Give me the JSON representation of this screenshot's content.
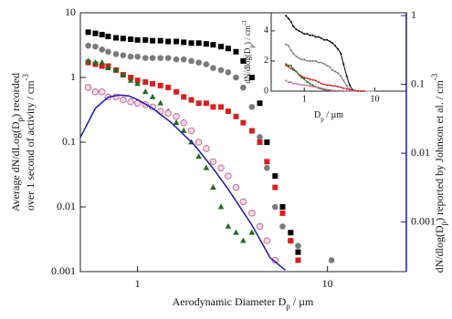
{
  "chart_data": {
    "type": "scatter",
    "x_label": [
      "Aerodynamic Diameter D",
      "p",
      " / µm"
    ],
    "y_label": {
      "line1": [
        "Average dN/dLog(D",
        "p",
        ") recorded"
      ],
      "line2": [
        "over 1 second of activity / cm",
        "-3"
      ]
    },
    "y2_label": [
      "dN/dlog(D",
      "p",
      ") reported by Johnson et al. / cm",
      "-3"
    ],
    "log_x": true,
    "log_y": true,
    "xlim": [
      0.5,
      26
    ],
    "xticks": [
      1,
      10
    ],
    "ylim": [
      0.001,
      10
    ],
    "yticks": [
      0.001,
      0.01,
      0.1,
      1,
      10
    ],
    "y2lim": [
      0.00019,
      1.1
    ],
    "y2ticks": [
      0.001,
      0.01,
      0.1,
      1
    ],
    "y2_color": "#1a1aa0",
    "x": [
      0.55,
      0.6,
      0.65,
      0.7,
      0.77,
      0.84,
      0.92,
      1.0,
      1.1,
      1.2,
      1.32,
      1.45,
      1.6,
      1.75,
      1.92,
      2.1,
      2.3,
      2.5,
      2.75,
      3.0,
      3.3,
      3.6,
      4.0,
      4.4,
      4.8,
      5.3,
      5.8,
      6.4,
      7.0,
      10.5
    ],
    "series": [
      {
        "color": "#000000",
        "marker": "square",
        "values": [
          5,
          4.8,
          4.6,
          4.3,
          4.1,
          4.0,
          3.9,
          3.8,
          3.8,
          3.7,
          3.7,
          3.6,
          3.6,
          3.5,
          3.4,
          3.4,
          3.3,
          3.2,
          3.0,
          2.8,
          2.5,
          1.8,
          1.0,
          0.4,
          0.1,
          0.03,
          0.01,
          0.004,
          0.002,
          null
        ]
      },
      {
        "color": "#7a7a7a",
        "marker": "circle",
        "values": [
          3.1,
          3.0,
          2.7,
          2.5,
          2.3,
          2.2,
          2.1,
          2.1,
          2.0,
          2.0,
          2.0,
          2.0,
          1.9,
          1.9,
          1.8,
          1.7,
          1.6,
          1.4,
          1.3,
          1.2,
          1.0,
          0.7,
          0.35,
          0.12,
          0.04,
          0.01,
          0.005,
          0.003,
          0.0025,
          0.0015
        ]
      },
      {
        "color": "#d62020",
        "marker": "square",
        "values": [
          1.7,
          1.6,
          1.5,
          1.5,
          1.3,
          1.1,
          1.0,
          0.9,
          0.85,
          0.8,
          0.75,
          0.7,
          0.6,
          0.5,
          0.45,
          0.4,
          0.4,
          0.35,
          0.35,
          0.3,
          0.25,
          0.2,
          0.15,
          0.1,
          0.05,
          0.02,
          0.008,
          0.003,
          0.0015,
          null
        ]
      },
      {
        "color": "#1f6b1f",
        "marker": "triangle",
        "values": [
          1.8,
          1.7,
          1.7,
          1.4,
          1.3,
          1.1,
          0.9,
          0.8,
          0.6,
          0.5,
          0.4,
          0.3,
          0.2,
          0.15,
          0.1,
          0.06,
          0.04,
          0.02,
          0.01,
          0.005,
          0.004,
          0.003,
          0.004,
          null,
          null,
          null,
          null,
          null,
          null,
          null
        ]
      },
      {
        "color": "#c070a0",
        "marker": "open-circle",
        "values": [
          0.7,
          0.6,
          0.6,
          0.5,
          0.5,
          0.45,
          0.42,
          0.4,
          0.38,
          0.35,
          0.3,
          0.28,
          0.25,
          0.2,
          0.15,
          0.1,
          0.08,
          0.05,
          0.04,
          0.03,
          0.02,
          0.012,
          0.008,
          0.005,
          0.003,
          0.0015,
          null,
          null,
          null,
          null
        ]
      },
      {
        "type": "line",
        "axis": "y2",
        "color": "#1a1aa0",
        "x": [
          0.5,
          0.6,
          0.7,
          0.8,
          0.9,
          1.0,
          1.2,
          1.5,
          2,
          2.5,
          3,
          4,
          5,
          6
        ],
        "values": [
          0.017,
          0.045,
          0.065,
          0.07,
          0.068,
          0.06,
          0.045,
          0.028,
          0.013,
          0.006,
          0.003,
          0.0009,
          0.0003,
          0.0002
        ]
      }
    ],
    "inset": {
      "xlim": [
        0.34,
        28
      ],
      "xticks": [
        1,
        10
      ],
      "ylim": [
        0,
        5.2
      ],
      "yticks": [
        0,
        2,
        4
      ],
      "y_label": [
        "dN/dlog(D",
        "p",
        ") / cm",
        "-3"
      ],
      "x_label": [
        "D",
        "p",
        " / µm"
      ]
    }
  }
}
